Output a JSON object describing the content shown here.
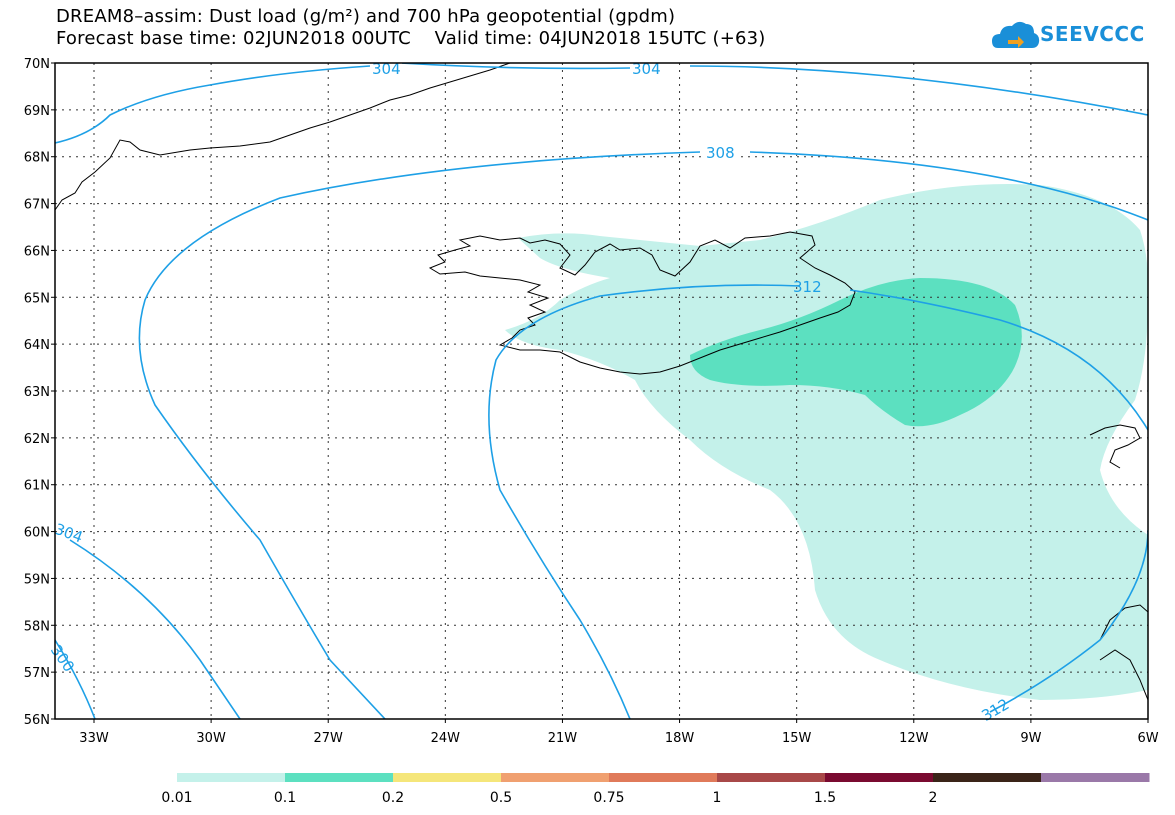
{
  "title": {
    "line1": "DREAM8–assim: Dust load (g/m²) and 700 hPa geopotential (gpdm)",
    "line2": "Forecast base time: 02JUN2018 00UTC    Valid time: 04JUN2018 15UTC (+63)"
  },
  "logo": {
    "text": "SEEVCCC",
    "color": "#1a8fd8"
  },
  "axes": {
    "lat_labels": [
      "70N",
      "69N",
      "68N",
      "67N",
      "66N",
      "65N",
      "64N",
      "63N",
      "62N",
      "61N",
      "60N",
      "59N",
      "58N",
      "57N",
      "56N"
    ],
    "lon_labels": [
      "33W",
      "30W",
      "27W",
      "24W",
      "21W",
      "18W",
      "15W",
      "12W",
      "9W",
      "6W"
    ]
  },
  "contours": {
    "color": "#1ea0e6",
    "labels": [
      "304",
      "304",
      "308",
      "312",
      "312",
      "304",
      "300"
    ]
  },
  "dust_fill": {
    "light_color": "#c4f1ea",
    "medium_color": "#5ce0c0"
  },
  "colorbar": {
    "colors": [
      "#c4f1ea",
      "#5ce0c0",
      "#f5e67a",
      "#f0a070",
      "#e07a5a",
      "#a84848",
      "#7a0a30",
      "#3a2418",
      "#9a78a8"
    ],
    "labels": [
      "0.01",
      "0.1",
      "0.2",
      "0.5",
      "0.75",
      "1",
      "1.5",
      "2"
    ]
  }
}
